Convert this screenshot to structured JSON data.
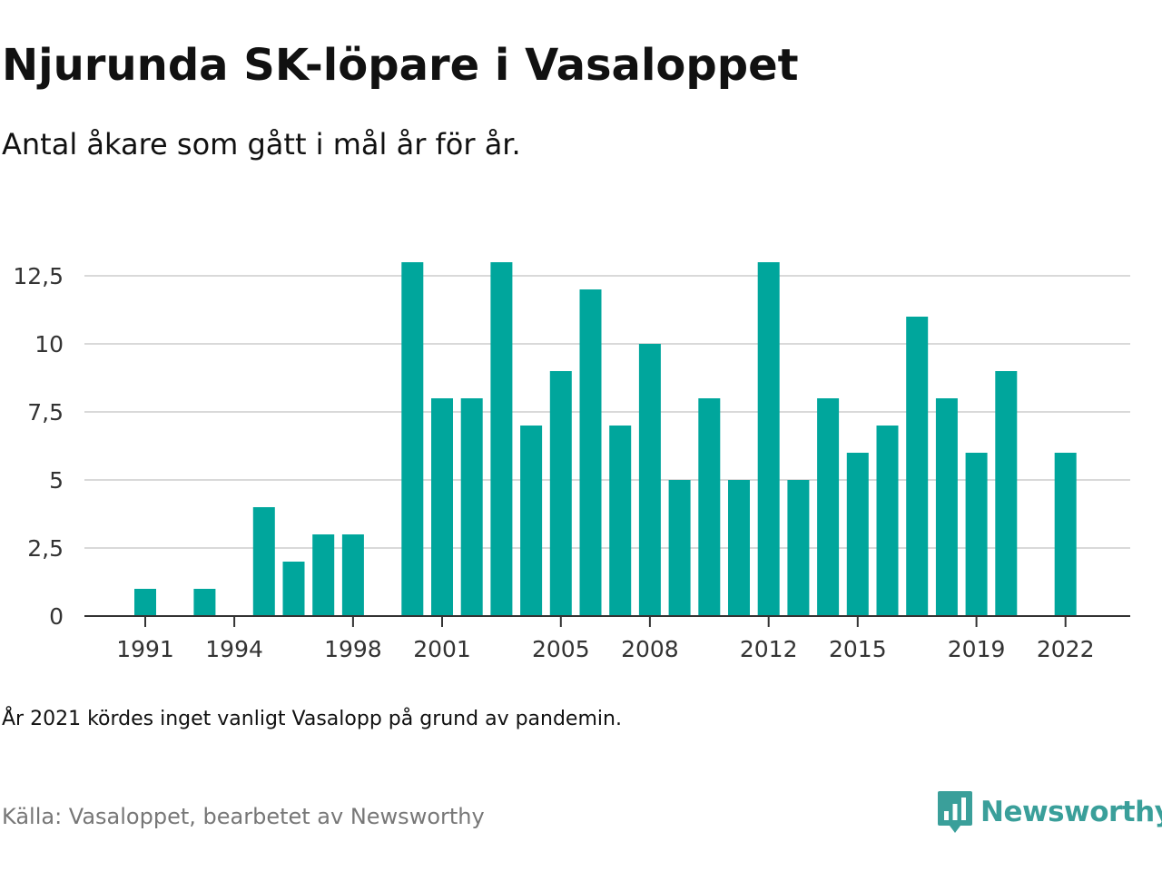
{
  "header": {
    "title": "Njurunda SK-löpare i Vasaloppet",
    "subtitle": "Antal åkare som gått i mål år för år."
  },
  "footer": {
    "note": "År 2021 kördes inget vanligt Vasalopp på grund av pandemin.",
    "source": "Källa: Vasaloppet, bearbetet av Newsworthy",
    "logo_text": "Newsworthy",
    "logo_icon": "newsworthy-chart-bubble-icon"
  },
  "colors": {
    "bar": "#00a69c",
    "grid": "#d9d9d9",
    "axis": "#333333",
    "brand": "#3a9f9a"
  },
  "chart_data": {
    "type": "bar",
    "categories": [
      "1991",
      "1992",
      "1993",
      "1994",
      "1995",
      "1996",
      "1997",
      "1998",
      "1999",
      "2000",
      "2001",
      "2002",
      "2003",
      "2004",
      "2005",
      "2006",
      "2007",
      "2008",
      "2009",
      "2010",
      "2011",
      "2012",
      "2013",
      "2014",
      "2015",
      "2016",
      "2017",
      "2018",
      "2019",
      "2020",
      "2021",
      "2022"
    ],
    "values": [
      1,
      0,
      1,
      0,
      4,
      2,
      3,
      3,
      0,
      13,
      8,
      8,
      13,
      7,
      9,
      12,
      7,
      10,
      5,
      8,
      5,
      13,
      5,
      8,
      6,
      7,
      11,
      8,
      6,
      9,
      0,
      6
    ],
    "x_tick_labels": [
      "1991",
      "1994",
      "1998",
      "2001",
      "2005",
      "2008",
      "2012",
      "2015",
      "2019",
      "2022"
    ],
    "y_ticks": [
      0,
      2.5,
      5,
      7.5,
      10,
      12.5
    ],
    "y_tick_labels": [
      "0",
      "2,5",
      "5",
      "7,5",
      "10",
      "12,5"
    ],
    "ylim": [
      0,
      13
    ],
    "grid": true,
    "legend": "none"
  }
}
